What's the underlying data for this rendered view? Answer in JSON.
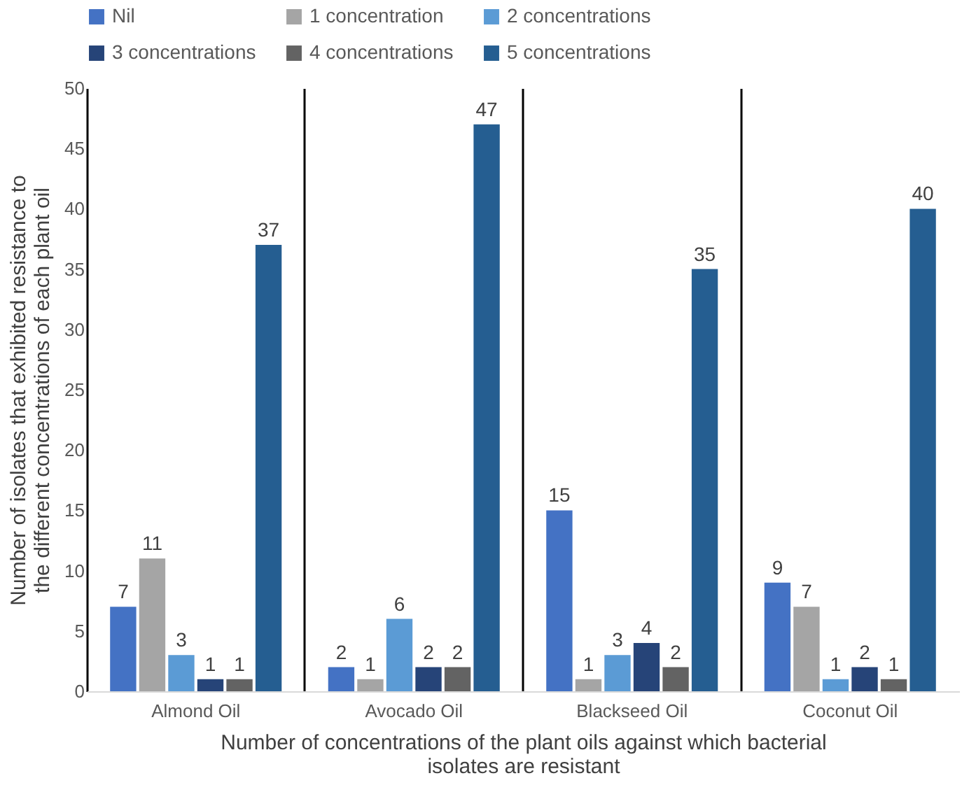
{
  "chart_data": {
    "type": "bar",
    "xlabel": "Number of concentrations of the plant oils against which bacterial\nisolates are resistant",
    "ylabel": "Number of isolates that exhibited resistance to\nthe different concentrations of each plant oil",
    "categories": [
      "Almond Oil",
      "Avocado Oil",
      "Blackseed Oil",
      "Coconut Oil"
    ],
    "series": [
      {
        "name": "Nil",
        "color": "#4472c4",
        "values": [
          7,
          2,
          15,
          9
        ]
      },
      {
        "name": "1 concentration",
        "color": "#a5a5a5",
        "values": [
          11,
          1,
          1,
          7
        ]
      },
      {
        "name": "2 concentrations",
        "color": "#5b9bd5",
        "values": [
          3,
          6,
          3,
          1
        ]
      },
      {
        "name": "3 concentrations",
        "color": "#264478",
        "values": [
          1,
          2,
          4,
          2
        ]
      },
      {
        "name": "4 concentrations",
        "color": "#636363",
        "values": [
          1,
          2,
          2,
          1
        ]
      },
      {
        "name": "5 concentrations",
        "color": "#255e91",
        "values": [
          37,
          47,
          35,
          40
        ]
      }
    ],
    "ylim": [
      0,
      50
    ],
    "yticks": [
      0,
      5,
      10,
      15,
      20,
      25,
      30,
      35,
      40,
      45,
      50
    ],
    "grid": "x",
    "legend": "top",
    "data_labels": true
  }
}
